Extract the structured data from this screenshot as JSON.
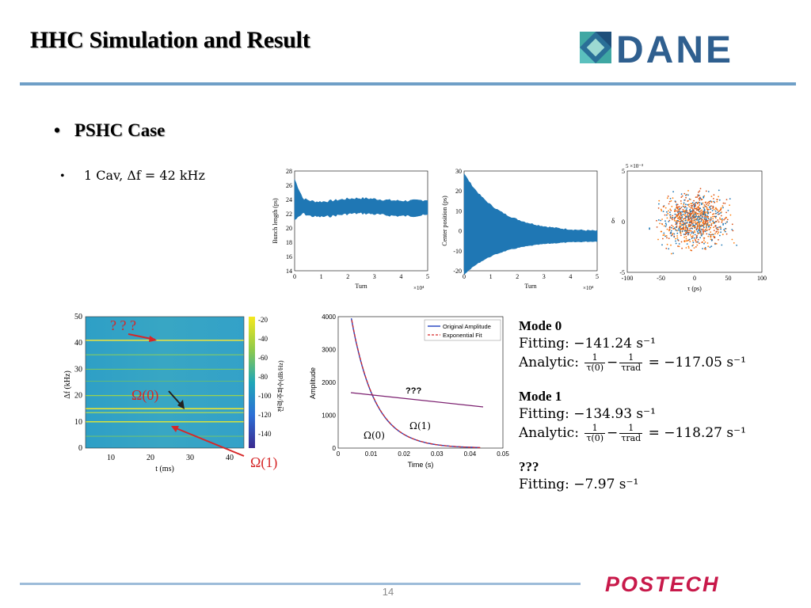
{
  "header": {
    "title": "HHC Simulation and Result",
    "logo_text": "DANE",
    "logo_color": "#2f5f8f"
  },
  "section": {
    "bullet": "PSHC Case",
    "sub_bullet": "1 Cav, Δf = 42 kHz"
  },
  "plots": {
    "bunch_length": {
      "ylabel": "Bunch length (ps)",
      "xlabel": "Turn",
      "x_multiplier": "×10⁴",
      "yticks": [
        "14",
        "16",
        "18",
        "20",
        "22",
        "24",
        "26",
        "28"
      ],
      "xticks": [
        "0",
        "1",
        "2",
        "3",
        "4",
        "5"
      ],
      "color": "#1f77b4"
    },
    "center_position": {
      "ylabel": "Center position (ps)",
      "xlabel": "Turn",
      "x_multiplier": "×10⁴",
      "yticks": [
        "-20",
        "-10",
        "0",
        "10",
        "20",
        "30"
      ],
      "xticks": [
        "0",
        "1",
        "2",
        "3",
        "4",
        "5"
      ]
    },
    "phase_space": {
      "ylabel": "δ",
      "xlabel": "τ (ps)",
      "y_multiplier": "5 ×10⁻³",
      "yticks": [
        "5",
        "0",
        "-5"
      ],
      "xticks": [
        "-100",
        "-50",
        "0",
        "50",
        "100"
      ]
    },
    "spectrogram": {
      "ylabel": "Δf (kHz)",
      "xlabel": "t (ms)",
      "colorbar_label": "전력/주파수(dB/Hz)",
      "yticks": [
        "0",
        "10",
        "20",
        "30",
        "40",
        "50"
      ],
      "xticks": [
        "10",
        "20",
        "30",
        "40"
      ],
      "colorbar_ticks": [
        "-20",
        "-40",
        "-60",
        "-80",
        "-100",
        "-120",
        "-140"
      ],
      "annotation_unknown": "? ? ?",
      "annotation_mode0": "Ω(0)",
      "annotation_mode1": "Ω(1)",
      "annotation_color": "#d62728"
    },
    "amplitude": {
      "ylabel": "Amplitude",
      "xlabel": "Time (s)",
      "yticks": [
        "0",
        "1000",
        "2000",
        "3000",
        "4000"
      ],
      "xticks": [
        "0",
        "0.01",
        "0.02",
        "0.03",
        "0.04",
        "0.05"
      ],
      "legend_original": "Original Amplitude",
      "legend_fit": "Exponential Fit",
      "annotation_unknown": "???",
      "annotation_mode0": "Ω(0)",
      "annotation_mode1": "Ω(1)"
    }
  },
  "results": {
    "mode0_title": "Mode 0",
    "mode0_fitting": "Fitting: −141.24 s⁻¹",
    "mode0_analytic_label": "Analytic:",
    "mode0_analytic_value": "= −117.05 s⁻¹",
    "mode1_title": "Mode 1",
    "mode1_fitting": "Fitting: −134.93 s⁻¹",
    "mode1_analytic_label": "Analytic:",
    "mode1_analytic_value": "= −118.27 s⁻¹",
    "unknown_title": "???",
    "unknown_fitting": "Fitting: −7.97 s⁻¹",
    "frac_num": "1",
    "frac_den0": "τ(0)",
    "frac_den_rad": "τrad"
  },
  "footer": {
    "page_number": "14",
    "org_logo": "POSTECH",
    "org_color": "#c8194a"
  }
}
